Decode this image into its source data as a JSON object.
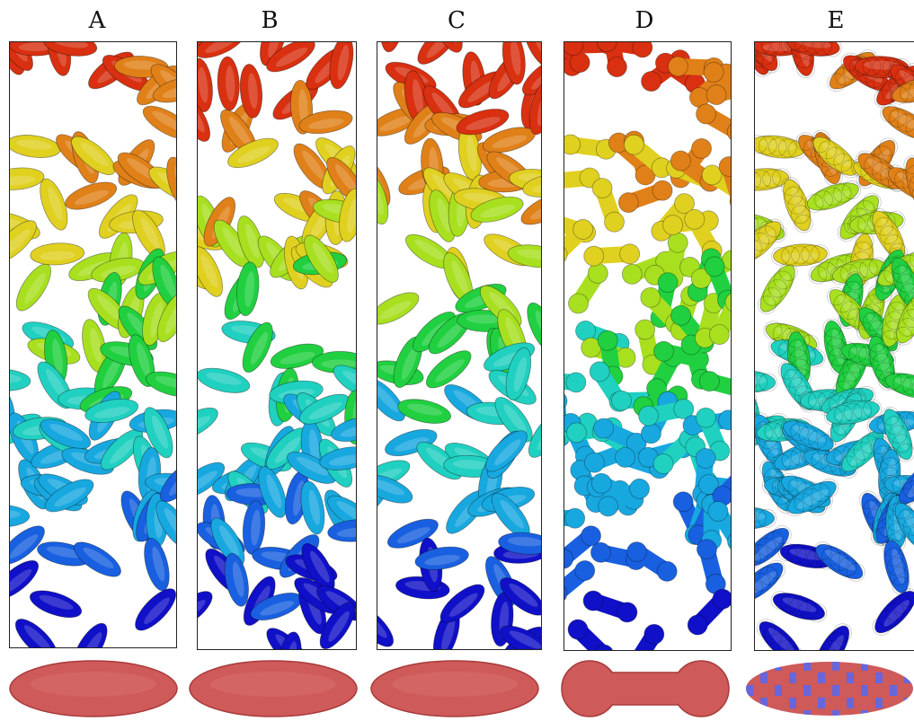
{
  "panels": [
    {
      "label": "A",
      "particle_shape": "ellipsoid",
      "seed": 11
    },
    {
      "label": "B",
      "particle_shape": "ellipsoid",
      "seed": 23
    },
    {
      "label": "C",
      "particle_shape": "ellipsoid",
      "seed": 37
    },
    {
      "label": "D",
      "particle_shape": "spherocylinder",
      "seed": 11
    },
    {
      "label": "E",
      "particle_shape": "multi-sphere ellipsoid",
      "seed": 11
    }
  ],
  "colors": {
    "colormap": [
      "#1010c8",
      "#1860e0",
      "#18a8e0",
      "#20d0c0",
      "#20d040",
      "#a8e020",
      "#e0d020",
      "#e08018",
      "#d83010"
    ],
    "shape_fill": "#cf5a5a",
    "shape_stroke": "#a83a3a",
    "shape_accent": "#6666dd"
  }
}
